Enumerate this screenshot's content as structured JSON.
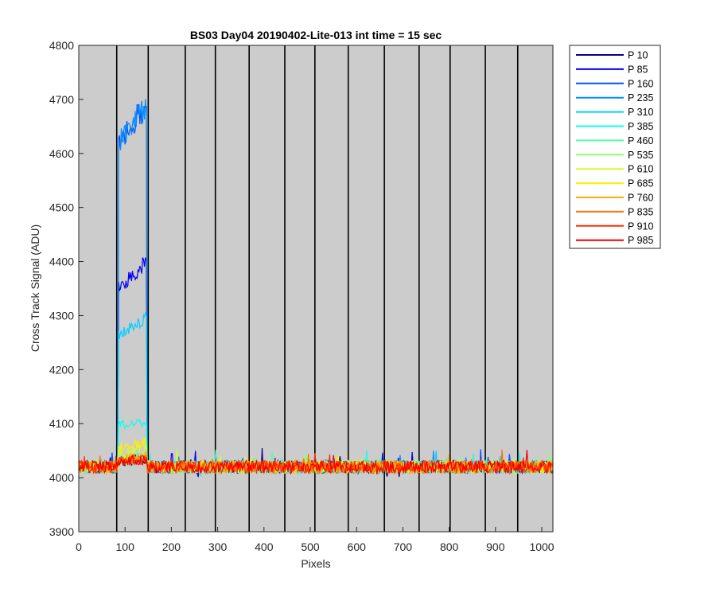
{
  "chart_data": {
    "type": "line",
    "title": "BS03 Day04 20190402-Lite-013 int time = 15 sec",
    "xlabel": "Pixels",
    "ylabel": "Cross Track Signal (ADU)",
    "xlim": [
      0,
      1024
    ],
    "ylim": [
      3900,
      4800
    ],
    "xticks": [
      0,
      100,
      200,
      300,
      400,
      500,
      600,
      700,
      800,
      900,
      1000
    ],
    "yticks": [
      3900,
      4000,
      4100,
      4200,
      4300,
      4400,
      4500,
      4600,
      4700,
      4800
    ],
    "vertical_lines_x": [
      82,
      150,
      230,
      295,
      368,
      445,
      510,
      582,
      660,
      735,
      802,
      878,
      948
    ],
    "baseline": 4020,
    "noise_amplitude": 12,
    "bump_range": [
      85,
      147
    ],
    "plot_background": "#cccccc",
    "grid": false,
    "legend_location": "outside right",
    "series": [
      {
        "name": "P 10",
        "color": "#00008f",
        "bump_start": 4030,
        "bump_end": 4035
      },
      {
        "name": "P 85",
        "color": "#0000ef",
        "bump_start": 4350,
        "bump_end": 4400
      },
      {
        "name": "P 160",
        "color": "#0050ff",
        "bump_start": 4620,
        "bump_end": 4690
      },
      {
        "name": "P 235",
        "color": "#008fff",
        "bump_start": 4620,
        "bump_end": 4690
      },
      {
        "name": "P 310",
        "color": "#00cfff",
        "bump_start": 4265,
        "bump_end": 4295
      },
      {
        "name": "P 385",
        "color": "#10ffef",
        "bump_start": 4095,
        "bump_end": 4105
      },
      {
        "name": "P 460",
        "color": "#50ffaf",
        "bump_start": 4035,
        "bump_end": 4040
      },
      {
        "name": "P 535",
        "color": "#8fff70",
        "bump_start": 4030,
        "bump_end": 4035
      },
      {
        "name": "P 610",
        "color": "#cfff30",
        "bump_start": 4045,
        "bump_end": 4055
      },
      {
        "name": "P 685",
        "color": "#ffef00",
        "bump_start": 4055,
        "bump_end": 4065
      },
      {
        "name": "P 760",
        "color": "#ffaf00",
        "bump_start": 4035,
        "bump_end": 4040
      },
      {
        "name": "P 835",
        "color": "#ff7000",
        "bump_start": 4030,
        "bump_end": 4035
      },
      {
        "name": "P 910",
        "color": "#ff3000",
        "bump_start": 4030,
        "bump_end": 4035
      },
      {
        "name": "P 985",
        "color": "#ef0000",
        "bump_start": 4030,
        "bump_end": 4035
      }
    ]
  }
}
